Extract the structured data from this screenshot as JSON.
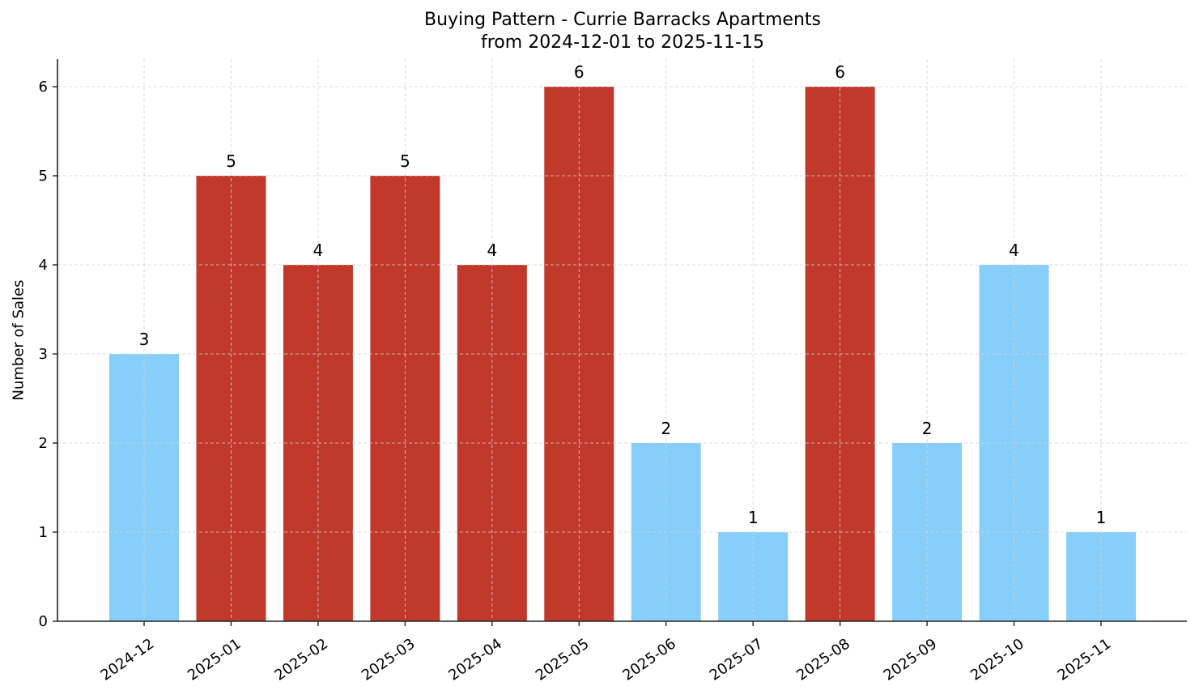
{
  "chart_data": {
    "type": "bar",
    "title": "Buying Pattern - Currie Barracks Apartments",
    "subtitle": "from 2024-12-01 to 2025-11-15",
    "xlabel": "",
    "ylabel": "Number of Sales",
    "categories": [
      "2024-12",
      "2025-01",
      "2025-02",
      "2025-03",
      "2025-04",
      "2025-05",
      "2025-06",
      "2025-07",
      "2025-08",
      "2025-09",
      "2025-10",
      "2025-11"
    ],
    "values": [
      3,
      5,
      4,
      5,
      4,
      6,
      2,
      1,
      6,
      2,
      4,
      1
    ],
    "bar_colors": [
      "#87CEFA",
      "#C0392B",
      "#C0392B",
      "#C0392B",
      "#C0392B",
      "#C0392B",
      "#87CEFA",
      "#87CEFA",
      "#C0392B",
      "#87CEFA",
      "#87CEFA",
      "#87CEFA"
    ],
    "data_labels": [
      "3",
      "5",
      "4",
      "5",
      "4",
      "6",
      "2",
      "1",
      "6",
      "2",
      "4",
      "1"
    ],
    "yticks": [
      0,
      1,
      2,
      3,
      4,
      5,
      6
    ],
    "ylim": [
      0,
      6.3
    ],
    "grid": true,
    "legend": null
  },
  "colors": {
    "high": "#C0392B",
    "low": "#87CEFA",
    "grid": "#d3d3d3",
    "axis": "#222222"
  }
}
